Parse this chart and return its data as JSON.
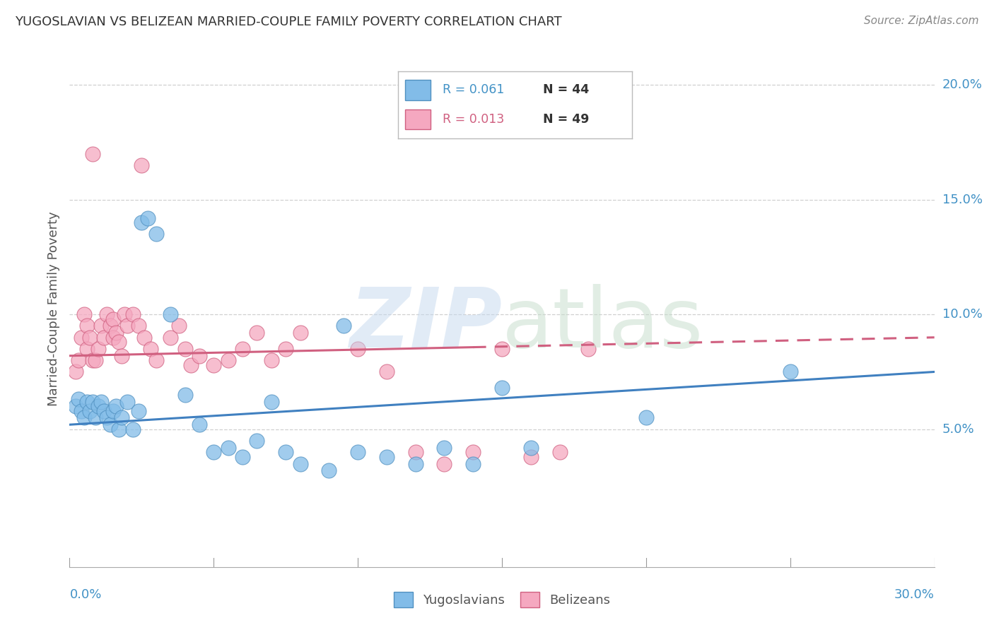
{
  "title": "YUGOSLAVIAN VS BELIZEAN MARRIED-COUPLE FAMILY POVERTY CORRELATION CHART",
  "source": "Source: ZipAtlas.com",
  "ylabel": "Married-Couple Family Poverty",
  "xlim": [
    0.0,
    0.3
  ],
  "ylim": [
    -0.01,
    0.215
  ],
  "yaxis_ticks": [
    0.05,
    0.1,
    0.15,
    0.2
  ],
  "yaxis_labels": [
    "5.0%",
    "10.0%",
    "15.0%",
    "20.0%"
  ],
  "blue_scatter_color": "#82bce8",
  "blue_edge_color": "#5090c0",
  "pink_scatter_color": "#f5a8c0",
  "pink_edge_color": "#d06080",
  "blue_line_color": "#4080c0",
  "pink_line_color": "#d06080",
  "r_yug": "0.061",
  "n_yug": "44",
  "r_bel": "0.013",
  "n_bel": "49",
  "yug_x": [
    0.002,
    0.003,
    0.004,
    0.005,
    0.006,
    0.007,
    0.008,
    0.009,
    0.01,
    0.011,
    0.012,
    0.013,
    0.014,
    0.015,
    0.016,
    0.017,
    0.018,
    0.02,
    0.022,
    0.024,
    0.025,
    0.027,
    0.03,
    0.035,
    0.04,
    0.045,
    0.05,
    0.055,
    0.06,
    0.065,
    0.07,
    0.075,
    0.08,
    0.09,
    0.095,
    0.1,
    0.11,
    0.12,
    0.13,
    0.14,
    0.15,
    0.16,
    0.2,
    0.25
  ],
  "yug_y": [
    0.06,
    0.063,
    0.058,
    0.055,
    0.062,
    0.058,
    0.062,
    0.055,
    0.06,
    0.062,
    0.058,
    0.055,
    0.052,
    0.058,
    0.06,
    0.05,
    0.055,
    0.062,
    0.05,
    0.058,
    0.14,
    0.142,
    0.135,
    0.1,
    0.065,
    0.052,
    0.04,
    0.042,
    0.038,
    0.045,
    0.062,
    0.04,
    0.035,
    0.032,
    0.095,
    0.04,
    0.038,
    0.035,
    0.042,
    0.035,
    0.068,
    0.042,
    0.055,
    0.075
  ],
  "bel_x": [
    0.002,
    0.003,
    0.004,
    0.005,
    0.006,
    0.006,
    0.007,
    0.008,
    0.008,
    0.009,
    0.01,
    0.011,
    0.012,
    0.013,
    0.014,
    0.015,
    0.015,
    0.016,
    0.017,
    0.018,
    0.019,
    0.02,
    0.022,
    0.024,
    0.025,
    0.026,
    0.028,
    0.03,
    0.035,
    0.038,
    0.04,
    0.042,
    0.045,
    0.05,
    0.055,
    0.06,
    0.065,
    0.07,
    0.075,
    0.08,
    0.1,
    0.11,
    0.12,
    0.13,
    0.14,
    0.15,
    0.16,
    0.17,
    0.18
  ],
  "bel_y": [
    0.075,
    0.08,
    0.09,
    0.1,
    0.095,
    0.085,
    0.09,
    0.08,
    0.17,
    0.08,
    0.085,
    0.095,
    0.09,
    0.1,
    0.095,
    0.09,
    0.098,
    0.092,
    0.088,
    0.082,
    0.1,
    0.095,
    0.1,
    0.095,
    0.165,
    0.09,
    0.085,
    0.08,
    0.09,
    0.095,
    0.085,
    0.078,
    0.082,
    0.078,
    0.08,
    0.085,
    0.092,
    0.08,
    0.085,
    0.092,
    0.085,
    0.075,
    0.04,
    0.035,
    0.04,
    0.085,
    0.038,
    0.04,
    0.085
  ],
  "blue_trendline_x0": 0.0,
  "blue_trendline_y0": 0.052,
  "blue_trendline_x1": 0.3,
  "blue_trendline_y1": 0.075,
  "pink_trendline_x0": 0.0,
  "pink_trendline_y0": 0.082,
  "pink_trendline_x1": 0.3,
  "pink_trendline_y1": 0.09
}
